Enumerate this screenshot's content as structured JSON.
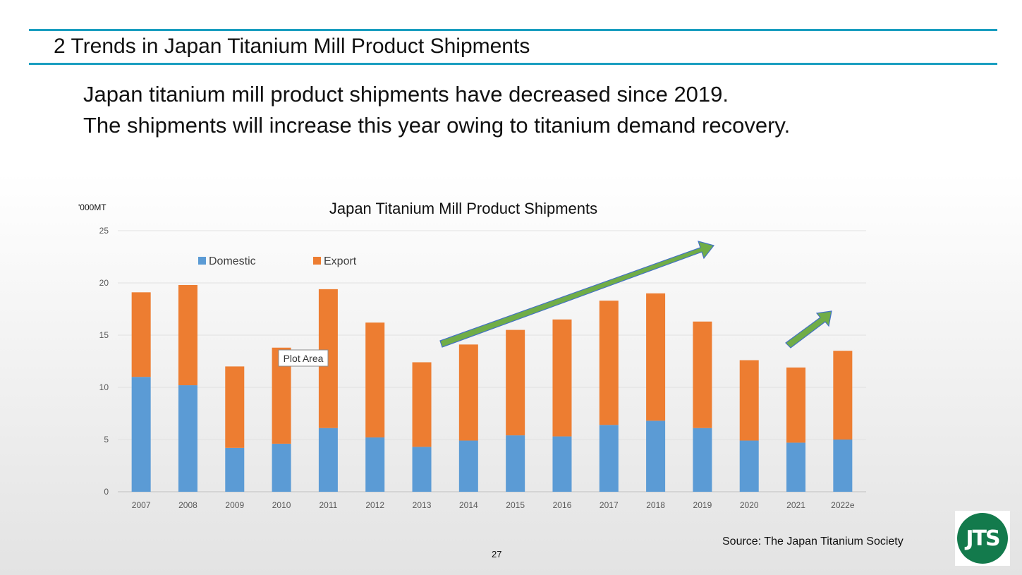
{
  "slide": {
    "title": "2 Trends in Japan Titanium Mill Product Shipments",
    "line1": "Japan titanium mill product shipments have decreased since 2019.",
    "line2": "The shipments will increase this year owing to titanium demand recovery.",
    "source": "Source: The Japan Titanium Society",
    "page_number": "27",
    "logo_text": "JTS"
  },
  "chart_data": {
    "type": "bar",
    "stacked": true,
    "title": "Japan Titanium Mill Product Shipments",
    "ylabel": "'000MT",
    "xlabel": "",
    "ylim": [
      0,
      25
    ],
    "yticks": [
      0,
      5,
      10,
      15,
      20,
      25
    ],
    "grid": true,
    "legend_position": "top-left",
    "categories": [
      "2007",
      "2008",
      "2009",
      "2010",
      "2011",
      "2012",
      "2013",
      "2014",
      "2015",
      "2016",
      "2017",
      "2018",
      "2019",
      "2020",
      "2021",
      "2022e"
    ],
    "series": [
      {
        "name": "Domestic",
        "color": "#5b9bd5",
        "values": [
          11.0,
          10.2,
          4.2,
          4.6,
          6.1,
          5.2,
          4.3,
          4.9,
          5.4,
          5.3,
          6.4,
          6.8,
          6.1,
          4.9,
          4.7,
          5.0
        ]
      },
      {
        "name": "Export",
        "color": "#ed7d31",
        "values": [
          8.1,
          9.6,
          7.8,
          9.2,
          13.3,
          11.0,
          8.1,
          9.2,
          10.1,
          11.2,
          11.9,
          12.2,
          10.2,
          7.7,
          7.2,
          8.5
        ]
      }
    ],
    "annotations": [
      {
        "text": "Plot Area"
      }
    ],
    "arrow_color": "#70ad47"
  }
}
